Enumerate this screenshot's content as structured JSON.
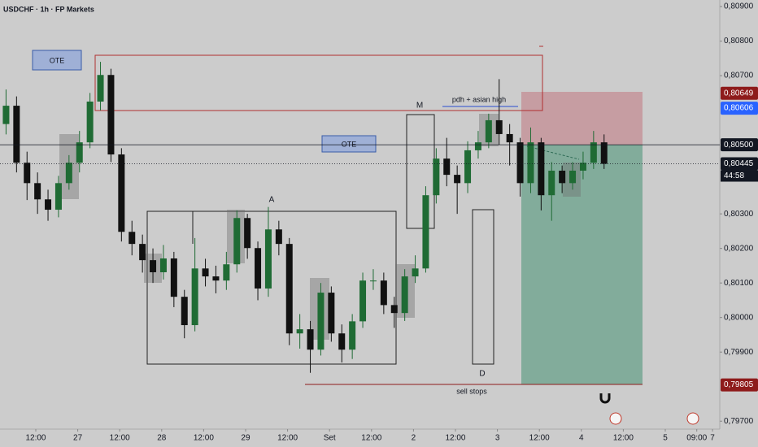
{
  "chart_data": {
    "type": "candlestick",
    "title": "USDCHF · 1h · FP Markets",
    "up_color": "#1f6b34",
    "down_color": "#111111",
    "x": [
      1.5,
      4.5,
      7.5,
      10.5,
      13.5,
      16.5,
      19.5,
      22.5,
      25.5,
      28.5,
      31.5,
      34.5,
      37.5,
      40.5,
      43.5,
      46.5,
      49.5,
      52.5,
      55.5,
      58.5,
      61.5,
      64.5,
      67.5,
      70.5,
      73.5,
      76.5,
      79.5,
      82.5,
      85.5,
      88.5,
      91.5,
      94.5,
      97.5,
      100.5,
      103.5,
      106.5,
      109.5,
      112.5,
      115.5,
      118.5,
      121.5,
      124.5,
      127.5,
      130.5,
      133.5,
      136.5,
      139.5,
      142.5,
      145.5,
      148.5,
      151.5,
      154.5,
      157.5,
      160.5,
      163.5,
      166.5,
      169.5,
      172.5
    ],
    "open": [
      0.8056,
      0.80613,
      0.80448,
      0.80389,
      0.80342,
      0.80312,
      0.80389,
      0.80448,
      0.80507,
      0.80625,
      0.80702,
      0.80472,
      0.80248,
      0.80213,
      0.80166,
      0.80131,
      0.80171,
      0.8006,
      0.79978,
      0.80142,
      0.80119,
      0.80107,
      0.80154,
      0.80288,
      0.80201,
      0.80084,
      0.80255,
      0.80213,
      0.79954,
      0.79966,
      0.79907,
      0.80072,
      0.79954,
      0.79907,
      0.79989,
      0.80107,
      0.80107,
      0.80036,
      0.80013,
      0.80119,
      0.80142,
      0.80354,
      0.8046,
      0.80413,
      0.80389,
      0.80484,
      0.80507,
      0.80571,
      0.80531,
      0.80507,
      0.80389,
      0.80507,
      0.80354,
      0.80425,
      0.80389,
      0.80425,
      0.80448,
      0.80507
    ],
    "high": [
      0.8066,
      0.8064,
      0.8048,
      0.8042,
      0.8037,
      0.8041,
      0.8047,
      0.8054,
      0.8065,
      0.8074,
      0.8072,
      0.8049,
      0.8028,
      0.8024,
      0.802,
      0.8021,
      0.8019,
      0.8008,
      0.8023,
      0.8017,
      0.8015,
      0.8019,
      0.8031,
      0.803,
      0.8022,
      0.8032,
      0.8028,
      0.8023,
      0.8001,
      0.7999,
      0.801,
      0.8009,
      0.7998,
      0.8001,
      0.8013,
      0.8014,
      0.8013,
      0.8006,
      0.8014,
      0.8018,
      0.8038,
      0.8049,
      0.8052,
      0.8044,
      0.8051,
      0.8054,
      0.8059,
      0.8069,
      0.8056,
      0.8052,
      0.8055,
      0.8052,
      0.8045,
      0.8044,
      0.8045,
      0.8048,
      0.8054,
      0.8053
    ],
    "low": [
      0.8053,
      0.8042,
      0.8034,
      0.803,
      0.8028,
      0.8029,
      0.8037,
      0.8042,
      0.8049,
      0.806,
      0.8045,
      0.8022,
      0.8018,
      0.8013,
      0.801,
      0.8011,
      0.8003,
      0.7994,
      0.7996,
      0.8009,
      0.8007,
      0.8008,
      0.8013,
      0.8017,
      0.8005,
      0.8006,
      0.8018,
      0.7992,
      0.7991,
      0.7984,
      0.7989,
      0.7993,
      0.7987,
      0.7988,
      0.7997,
      0.8008,
      0.8001,
      0.7997,
      0.7999,
      0.801,
      0.8013,
      0.8033,
      0.8038,
      0.803,
      0.8036,
      0.8046,
      0.8049,
      0.805,
      0.8044,
      0.8035,
      0.8036,
      0.8031,
      0.8028,
      0.8036,
      0.8037,
      0.804,
      0.8043,
      0.8043
    ],
    "close": [
      0.80613,
      0.80448,
      0.80389,
      0.80342,
      0.80312,
      0.80389,
      0.80448,
      0.80507,
      0.80625,
      0.80702,
      0.80472,
      0.80248,
      0.80213,
      0.80166,
      0.80131,
      0.80171,
      0.8006,
      0.79978,
      0.80142,
      0.80119,
      0.80107,
      0.80154,
      0.80288,
      0.80201,
      0.80084,
      0.80255,
      0.80213,
      0.79954,
      0.79966,
      0.79907,
      0.80072,
      0.79954,
      0.79907,
      0.79989,
      0.80107,
      0.80107,
      0.80036,
      0.80013,
      0.80119,
      0.80142,
      0.80354,
      0.8046,
      0.80413,
      0.80389,
      0.80484,
      0.80507,
      0.80571,
      0.80531,
      0.80507,
      0.80389,
      0.80507,
      0.80354,
      0.80425,
      0.80389,
      0.80425,
      0.80448,
      0.80507,
      0.80445
    ],
    "xlim": [
      -0.23,
      205.58
    ],
    "ylim": [
      0.79677,
      0.80919
    ],
    "xticks": [
      {
        "value": 10,
        "label": "12:00"
      },
      {
        "value": 22,
        "label": "27"
      },
      {
        "value": 34,
        "label": "12:00"
      },
      {
        "value": 46,
        "label": "28"
      },
      {
        "value": 58,
        "label": "12:00"
      },
      {
        "value": 70,
        "label": "29"
      },
      {
        "value": 82,
        "label": "12:00"
      },
      {
        "value": 94,
        "label": "Set"
      },
      {
        "value": 106,
        "label": "12:00"
      },
      {
        "value": 118,
        "label": "2"
      },
      {
        "value": 130,
        "label": "12:00"
      },
      {
        "value": 142,
        "label": "3"
      },
      {
        "value": 154,
        "label": "12:00"
      },
      {
        "value": 166,
        "label": "4"
      },
      {
        "value": 178,
        "label": "12:00"
      },
      {
        "value": 190,
        "label": "5"
      },
      {
        "value": 199,
        "label": "09:00"
      },
      {
        "value": 203.5,
        "label": "7"
      }
    ],
    "yticks": [
      {
        "value": 0.809,
        "label": "0,80900"
      },
      {
        "value": 0.808,
        "label": "0,80800"
      },
      {
        "value": 0.807,
        "label": "0,80700"
      },
      {
        "value": 0.803,
        "label": "0,80300"
      },
      {
        "value": 0.802,
        "label": "0,80200"
      },
      {
        "value": 0.801,
        "label": "0,80100"
      },
      {
        "value": 0.8,
        "label": "0,80000"
      },
      {
        "value": 0.799,
        "label": "0,79900"
      },
      {
        "value": 0.797,
        "label": "0,79700"
      }
    ],
    "price_tags": [
      {
        "value": 0.80649,
        "label": "0,80649",
        "color": "#8e1b1b"
      },
      {
        "value": 0.80606,
        "label": "0,80606",
        "color": "#2962ff"
      },
      {
        "value": 0.805,
        "label": "0,80500",
        "color": "#131722",
        "line": "solid"
      },
      {
        "value": 0.80445,
        "label": "0,80445",
        "color": "#131722",
        "line": "dotted"
      },
      {
        "value": 0.79805,
        "label": "0,79805",
        "color": "#8e1b1b"
      }
    ],
    "countdown": "44:58",
    "annotations": {
      "ote_1": "OTE",
      "ote_2": "OTE",
      "m": "M",
      "a": "A",
      "d": "D",
      "pdh": "pdh + asian high",
      "sell_stops": "sell stops"
    }
  }
}
